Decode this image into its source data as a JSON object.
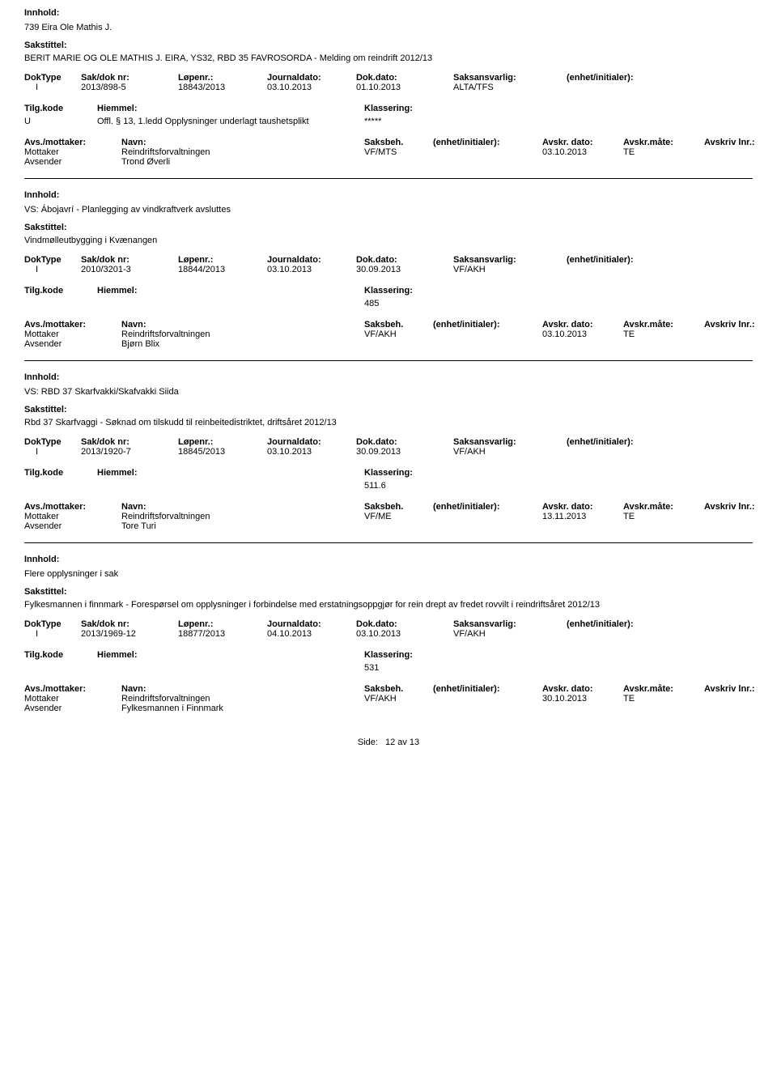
{
  "labels": {
    "innhold": "Innhold:",
    "sakstittel": "Sakstittel:",
    "doktype": "DokType",
    "sakdoknr": "Sak/dok nr:",
    "lopenr": "Løpenr.:",
    "journaldato": "Journaldato:",
    "dokdato": "Dok.dato:",
    "saksansvarlig": "Saksansvarlig:",
    "enhet": "(enhet/initialer):",
    "tilgkode": "Tilg.kode",
    "hiemmel": "Hiemmel:",
    "klassering": "Klassering:",
    "avsmottaker": "Avs./mottaker:",
    "navn": "Navn:",
    "saksbeh": "Saksbeh.",
    "saksbeh_enhet": "(enhet/initialer):",
    "avskr_dato": "Avskr. dato:",
    "avskr_mate": "Avskr.måte:",
    "avskriv_lnr": "Avskriv lnr.:",
    "mottaker": "Mottaker",
    "avsender": "Avsender"
  },
  "records": [
    {
      "innhold": "739 Eira Ole Mathis J.",
      "sakstittel": "BERIT MARIE OG OLE MATHIS J. EIRA, YS32, RBD 35 FAVROSORDA - Melding om reindrift 2012/13",
      "doktype": "I",
      "sakdoknr": "2013/898-5",
      "lopenr": "18843/2013",
      "journaldato": "03.10.2013",
      "dokdato": "01.10.2013",
      "saksansvarlig": "ALTA/TFS",
      "tilgkode": "U",
      "hiemmel": "Offl. § 13, 1.ledd Opplysninger underlagt taushetsplikt",
      "klassering": "*****",
      "mottaker_navn": "Reindriftsforvaltningen",
      "saksbeh": "VF/MTS",
      "avskr_dato": "03.10.2013",
      "avskr_mate": "TE",
      "avsender_navn": "Trond Øverli"
    },
    {
      "innhold": "VS: Ábojavrí - Planlegging av vindkraftverk avsluttes",
      "sakstittel": "Vindmølleutbygging i Kvænangen",
      "doktype": "I",
      "sakdoknr": "2010/3201-3",
      "lopenr": "18844/2013",
      "journaldato": "03.10.2013",
      "dokdato": "30.09.2013",
      "saksansvarlig": "VF/AKH",
      "tilgkode": "",
      "hiemmel": "",
      "klassering": "485",
      "mottaker_navn": "Reindriftsforvaltningen",
      "saksbeh": "VF/AKH",
      "avskr_dato": "03.10.2013",
      "avskr_mate": "TE",
      "avsender_navn": "Bjørn Blix"
    },
    {
      "innhold": "VS: RBD 37 Skarfvakki/Skafvakki Siida",
      "sakstittel": "Rbd 37 Skarfvaggi - Søknad om tilskudd til reinbeitedistriktet, driftsåret 2012/13",
      "doktype": "I",
      "sakdoknr": "2013/1920-7",
      "lopenr": "18845/2013",
      "journaldato": "03.10.2013",
      "dokdato": "30.09.2013",
      "saksansvarlig": "VF/AKH",
      "tilgkode": "",
      "hiemmel": "",
      "klassering": "511.6",
      "mottaker_navn": "Reindriftsforvaltningen",
      "saksbeh": "VF/ME",
      "avskr_dato": "13.11.2013",
      "avskr_mate": "TE",
      "avsender_navn": "Tore Turi"
    },
    {
      "innhold": "Flere opplysninger i sak",
      "sakstittel": "Fylkesmannen i finnmark - Forespørsel om opplysninger i forbindelse med erstatningsoppgjør for rein drept av fredet rovvilt i reindriftsåret 2012/13",
      "doktype": "I",
      "sakdoknr": "2013/1969-12",
      "lopenr": "18877/2013",
      "journaldato": "04.10.2013",
      "dokdato": "03.10.2013",
      "saksansvarlig": "VF/AKH",
      "tilgkode": "",
      "hiemmel": "",
      "klassering": "531",
      "mottaker_navn": "Reindriftsforvaltningen",
      "saksbeh": "VF/AKH",
      "avskr_dato": "30.10.2013",
      "avskr_mate": "TE",
      "avsender_navn": "Fylkesmannen i Finnmark"
    }
  ],
  "footer": {
    "side_label": "Side:",
    "page_text": "12 av  13"
  }
}
